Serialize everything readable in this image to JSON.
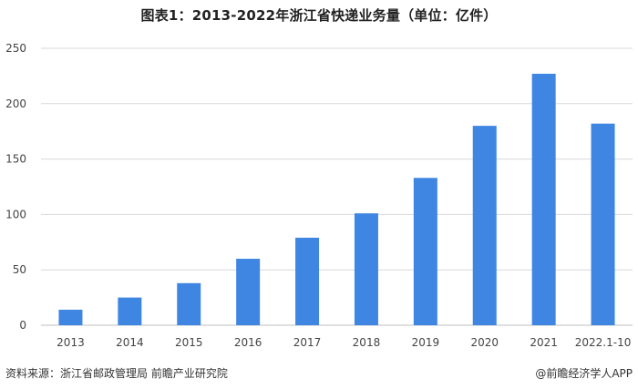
{
  "title": "图表1：2013-2022年浙江省快递业务量（单位：亿件）",
  "footer": {
    "source": "资料来源：浙江省邮政管理局 前瞻产业研究院",
    "brand": "@前瞻经济学人APP"
  },
  "colors": {
    "bar": "#3f86e3",
    "grid": "#d9d9d9",
    "axis": "#bfbfbf"
  },
  "chart_data": {
    "type": "bar",
    "categories": [
      "2013",
      "2014",
      "2015",
      "2016",
      "2017",
      "2018",
      "2019",
      "2020",
      "2021",
      "2022.1-10"
    ],
    "values": [
      14,
      25,
      38,
      60,
      79,
      101,
      133,
      180,
      227,
      182
    ],
    "ylim": [
      0,
      250
    ],
    "yticks": [
      0,
      50,
      100,
      150,
      200,
      250
    ],
    "grid": true,
    "legend": "none"
  }
}
